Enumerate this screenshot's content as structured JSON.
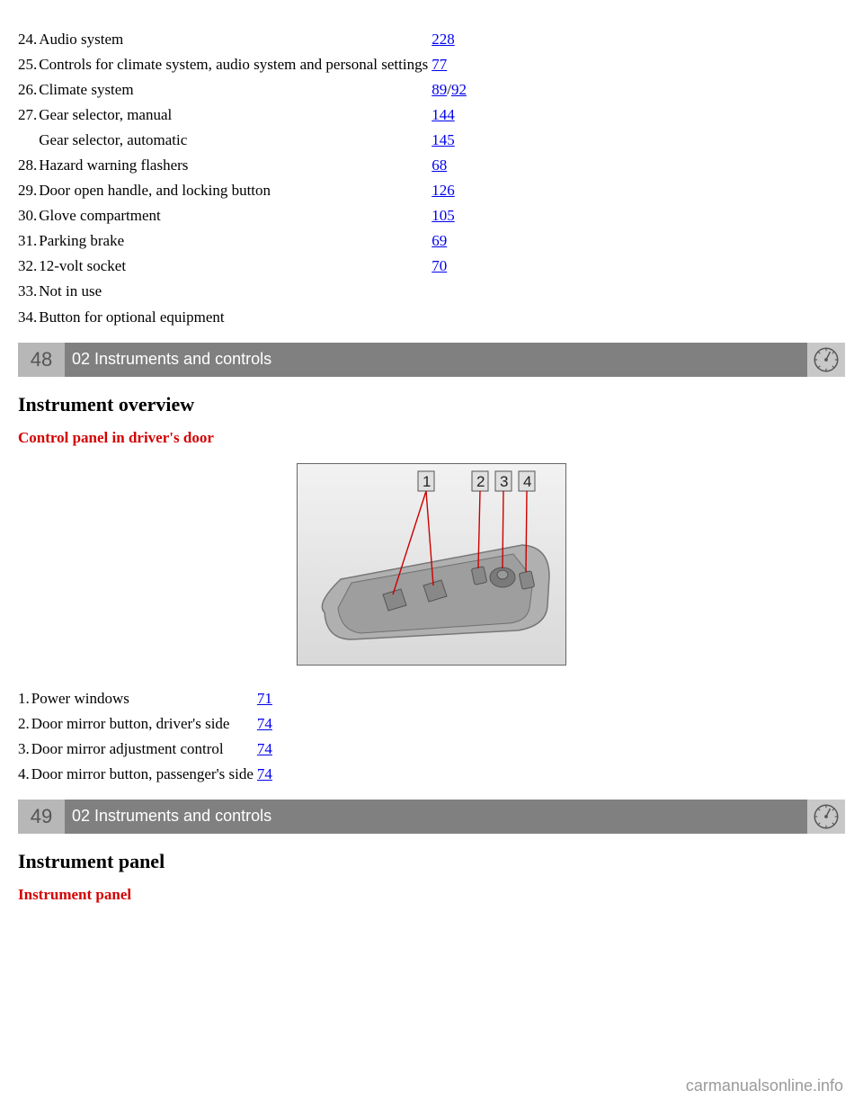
{
  "topTable": [
    {
      "num": "24.",
      "desc": "Audio system",
      "page": "228"
    },
    {
      "num": "25.",
      "desc": "Controls for climate system, audio system and personal settings",
      "page": "77"
    },
    {
      "num": "26.",
      "desc": "Climate system",
      "page": "89",
      "page2": "92"
    },
    {
      "num": "27.",
      "desc": "Gear selector, manual",
      "page": "144"
    },
    {
      "num": "",
      "desc": "Gear selector, automatic",
      "page": "145"
    },
    {
      "num": "28.",
      "desc": "Hazard warning flashers",
      "page": "68"
    },
    {
      "num": "29.",
      "desc": "Door open handle, and locking button",
      "page": "126"
    },
    {
      "num": "30.",
      "desc": "Glove compartment",
      "page": "105"
    },
    {
      "num": "31.",
      "desc": "Parking brake",
      "page": "69"
    },
    {
      "num": "32.",
      "desc": "12-volt socket",
      "page": "70"
    },
    {
      "num": "33.",
      "desc": "Not in use",
      "page": ""
    },
    {
      "num": "34.",
      "desc": "Button for optional equipment",
      "page": ""
    }
  ],
  "bar1": {
    "page": "48",
    "title": "02 Instruments and controls"
  },
  "heading1": "Instrument overview",
  "subred1": "Control panel in driver's door",
  "figLabels": [
    "1",
    "2",
    "3",
    "4"
  ],
  "midTable": [
    {
      "num": "1.",
      "desc": "Power windows",
      "page": "71"
    },
    {
      "num": "2.",
      "desc": "Door mirror button, driver's side",
      "page": "74"
    },
    {
      "num": "3.",
      "desc": "Door mirror adjustment control",
      "page": "74"
    },
    {
      "num": "4.",
      "desc": "Door mirror button, passenger's side",
      "page": "74"
    }
  ],
  "bar2": {
    "page": "49",
    "title": "02 Instruments and controls"
  },
  "heading2": "Instrument panel",
  "subred2": "Instrument panel",
  "footer": "carmanualsonline.info"
}
